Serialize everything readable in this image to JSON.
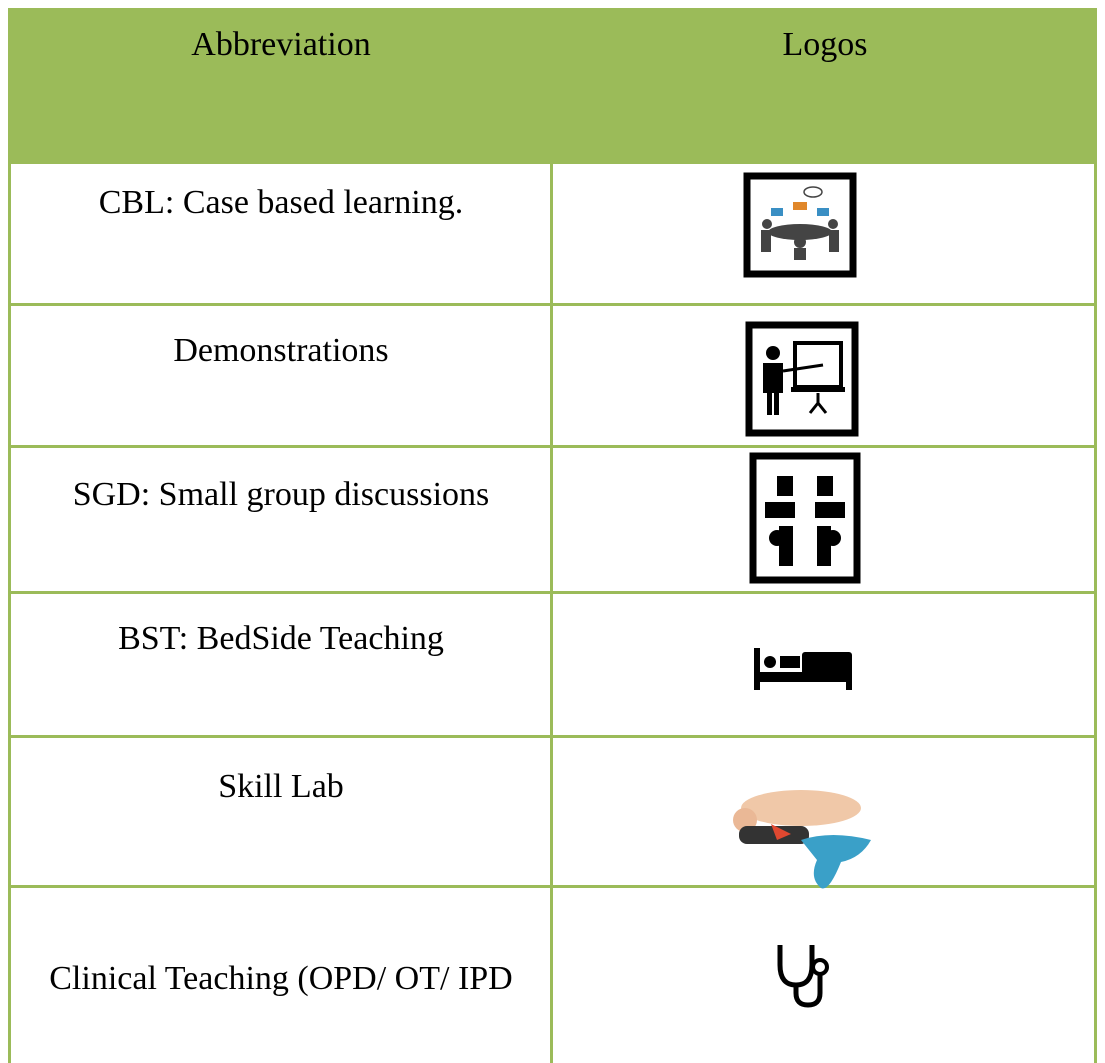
{
  "table": {
    "header": [
      "Abbreviation",
      "Logos"
    ],
    "rows": [
      "CBL: Case based learning.",
      "Demonstrations",
      "SGD: Small group discussions",
      "BST: BedSide Teaching",
      "Skill Lab",
      "Clinical Teaching (OPD/ OT/ IPD"
    ]
  }
}
